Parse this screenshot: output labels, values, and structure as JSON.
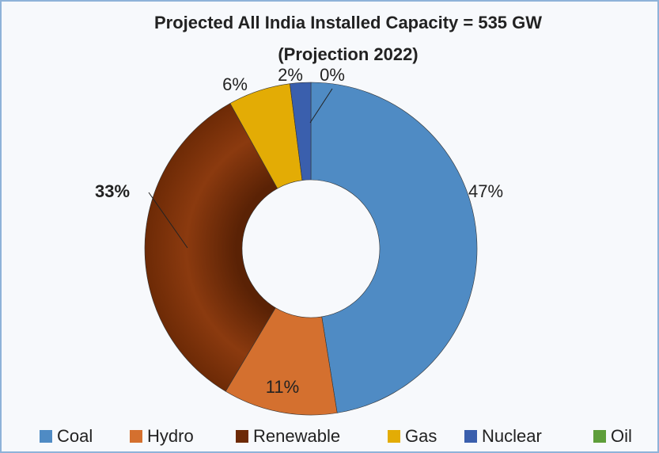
{
  "chart_data": {
    "type": "donut",
    "title": "Projected All India Installed Capacity = 535 GW",
    "subtitle": "(Projection 2022)",
    "categories": [
      "Coal",
      "Hydro",
      "Renewable",
      "Gas",
      "Nuclear",
      "Oil"
    ],
    "values": [
      47,
      11,
      33,
      6,
      2,
      0
    ],
    "value_labels": [
      "47%",
      "11%",
      "33%",
      "6%",
      "2%",
      "0%"
    ],
    "colors": [
      "#4f8bc4",
      "#d4702f",
      "#8b3a0f",
      "#e3ac05",
      "#3a5fad",
      "#5e9e3a"
    ],
    "legend": "bottom"
  }
}
